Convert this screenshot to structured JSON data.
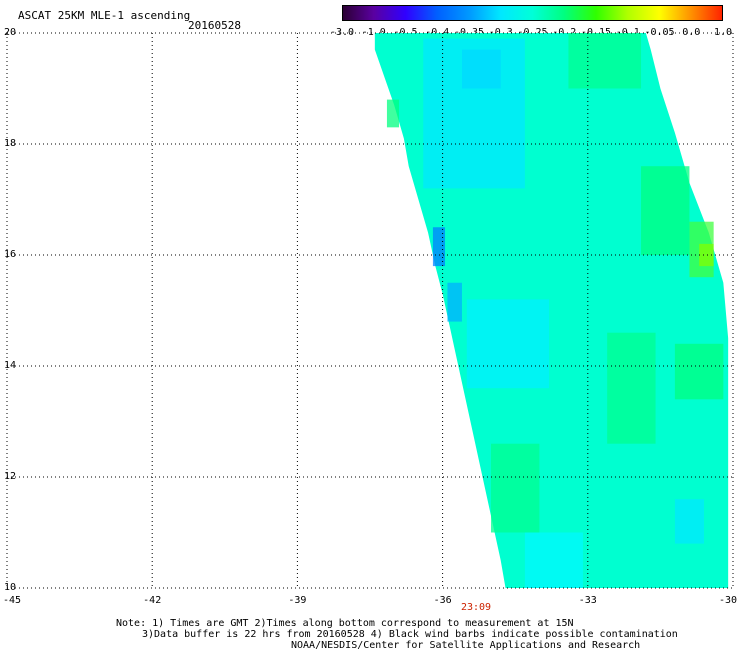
{
  "header": {
    "title": "ASCAT 25KM MLE-1 ascending",
    "date": "20160528"
  },
  "colorbar": {
    "ticks": [
      "-3.0",
      "-1.0",
      "-0.5",
      "-0.4",
      "-0.35",
      "-0.3",
      "-0.25",
      "-0.2",
      "-0.15",
      "-0.1",
      "-0.05",
      "0.0",
      "1.0"
    ],
    "colors": [
      "#2a0030",
      "#5a00a0",
      "#3000ff",
      "#0060ff",
      "#0098ff",
      "#00e8ff",
      "#00ffd8",
      "#00ff80",
      "#30ff00",
      "#b0ff00",
      "#ffff00",
      "#ff9000",
      "#ff2000"
    ]
  },
  "map": {
    "lon_ticks": [
      "-45",
      "-42",
      "-39",
      "-36",
      "-33",
      "-30"
    ],
    "lat_ticks": [
      "20",
      "18",
      "16",
      "14",
      "12",
      "10"
    ],
    "lon_range": [
      -45,
      -30
    ],
    "lat_range": [
      10,
      20
    ],
    "swath_color_dominant": "#00ffd0",
    "grid": "dotted"
  },
  "time_label": "23:09",
  "notes": {
    "line1": "Note: 1) Times are GMT 2)Times along bottom correspond to measurement at 15N",
    "line2": "3)Data buffer is 22 hrs from 20160528 4) Black wind barbs indicate possible contamination",
    "line3": "NOAA/NESDIS/Center for Satellite Applications and Research"
  }
}
